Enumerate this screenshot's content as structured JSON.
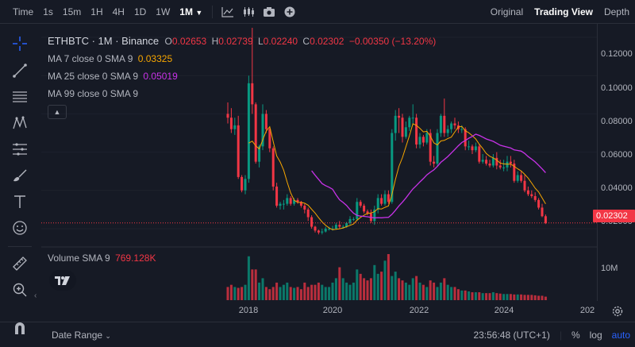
{
  "toolbar": {
    "time_label": "Time",
    "intervals": [
      "1s",
      "15m",
      "1H",
      "4H",
      "1D",
      "1W"
    ],
    "active_interval": "1M",
    "views": [
      "Original",
      "Trading View",
      "Depth"
    ],
    "active_view": "Trading View"
  },
  "legend": {
    "symbol": "ETHBTC · 1M · Binance",
    "open_label": "O",
    "open": "0.02653",
    "high_label": "H",
    "high": "0.02739",
    "low_label": "L",
    "low": "0.02240",
    "close_label": "C",
    "close": "0.02302",
    "change": "−0.00350 (−13.20%)",
    "ma7_label": "MA 7 close 0 SMA 9",
    "ma7_value": "0.03325",
    "ma25_label": "MA 25 close 0 SMA 9",
    "ma25_value": "0.05019",
    "ma99_label": "MA 99 close 0 SMA 9",
    "volume_label": "Volume SMA 9",
    "volume_value": "769.128K"
  },
  "price_axis": {
    "labels": [
      "0.12000",
      "0.10000",
      "0.08000",
      "0.06000",
      "0.04000",
      "0.02000"
    ],
    "current_price": "0.02302",
    "volume_label": "10M"
  },
  "time_axis": {
    "labels": [
      "2018",
      "2020",
      "2022",
      "2024",
      "202"
    ]
  },
  "bottom": {
    "date_range": "Date Range",
    "clock": "23:56:48 (UTC+1)",
    "percent": "%",
    "log": "log",
    "auto": "auto"
  },
  "colors": {
    "up": "#089981",
    "down": "#f23645",
    "ma7": "#f7a600",
    "ma25": "#c832e8",
    "background": "#161a25"
  },
  "chart_data": {
    "type": "candlestick",
    "x": [
      "2017-07",
      "2017-08",
      "2017-09",
      "2017-10",
      "2017-11",
      "2017-12",
      "2018-01",
      "2018-02",
      "2018-03",
      "2018-04",
      "2018-05",
      "2018-06",
      "2018-07",
      "2018-08",
      "2018-09",
      "2018-10",
      "2018-11",
      "2018-12",
      "2019-01",
      "2019-02",
      "2019-03",
      "2019-04",
      "2019-05",
      "2019-06",
      "2019-07",
      "2019-08",
      "2019-09",
      "2019-10",
      "2019-11",
      "2019-12",
      "2020-01",
      "2020-02",
      "2020-03",
      "2020-04",
      "2020-05",
      "2020-06",
      "2020-07",
      "2020-08",
      "2020-09",
      "2020-10",
      "2020-11",
      "2020-12",
      "2021-01",
      "2021-02",
      "2021-03",
      "2021-04",
      "2021-05",
      "2021-06",
      "2021-07",
      "2021-08",
      "2021-09",
      "2021-10",
      "2021-11",
      "2021-12",
      "2022-01",
      "2022-02",
      "2022-03",
      "2022-04",
      "2022-05",
      "2022-06",
      "2022-07",
      "2022-08",
      "2022-09",
      "2022-10",
      "2022-11",
      "2022-12",
      "2023-01",
      "2023-02",
      "2023-03",
      "2023-04",
      "2023-05",
      "2023-06",
      "2023-07",
      "2023-08",
      "2023-09",
      "2023-10",
      "2023-11",
      "2023-12",
      "2024-01",
      "2024-02",
      "2024-03",
      "2024-04",
      "2024-05",
      "2024-06",
      "2024-07",
      "2024-08",
      "2024-09",
      "2024-10",
      "2024-11",
      "2024-12",
      "2025-01",
      "2025-02"
    ],
    "open": [
      0.08,
      0.078,
      0.072,
      0.074,
      0.047,
      0.04,
      0.046,
      0.096,
      0.085,
      0.055,
      0.063,
      0.08,
      0.072,
      0.062,
      0.042,
      0.032,
      0.033,
      0.033,
      0.036,
      0.033,
      0.035,
      0.034,
      0.032,
      0.03,
      0.026,
      0.021,
      0.019,
      0.018,
      0.0185,
      0.02,
      0.02,
      0.02,
      0.022,
      0.021,
      0.021,
      0.023,
      0.025,
      0.025,
      0.034,
      0.032,
      0.029,
      0.028,
      0.024,
      0.03,
      0.036,
      0.033,
      0.038,
      0.034,
      0.07,
      0.079,
      0.078,
      0.068,
      0.073,
      0.078,
      0.078,
      0.064,
      0.068,
      0.065,
      0.07,
      0.055,
      0.054,
      0.07,
      0.079,
      0.07,
      0.072,
      0.075,
      0.074,
      0.072,
      0.072,
      0.063,
      0.063,
      0.061,
      0.063,
      0.055,
      0.056,
      0.054,
      0.053,
      0.057,
      0.053,
      0.052,
      0.052,
      0.055,
      0.054,
      0.045,
      0.048,
      0.045,
      0.04,
      0.038,
      0.037,
      0.035,
      0.031,
      0.0265
    ],
    "close": [
      0.078,
      0.072,
      0.074,
      0.047,
      0.04,
      0.046,
      0.096,
      0.085,
      0.055,
      0.063,
      0.08,
      0.072,
      0.062,
      0.042,
      0.032,
      0.033,
      0.033,
      0.036,
      0.033,
      0.035,
      0.034,
      0.032,
      0.03,
      0.026,
      0.021,
      0.019,
      0.018,
      0.0185,
      0.02,
      0.02,
      0.02,
      0.022,
      0.021,
      0.021,
      0.023,
      0.025,
      0.025,
      0.034,
      0.032,
      0.029,
      0.028,
      0.024,
      0.03,
      0.036,
      0.033,
      0.038,
      0.034,
      0.07,
      0.079,
      0.078,
      0.068,
      0.073,
      0.078,
      0.078,
      0.064,
      0.068,
      0.065,
      0.07,
      0.055,
      0.054,
      0.07,
      0.079,
      0.07,
      0.072,
      0.075,
      0.074,
      0.072,
      0.072,
      0.063,
      0.063,
      0.061,
      0.063,
      0.055,
      0.056,
      0.054,
      0.053,
      0.057,
      0.053,
      0.052,
      0.052,
      0.055,
      0.054,
      0.045,
      0.048,
      0.045,
      0.04,
      0.038,
      0.037,
      0.035,
      0.031,
      0.0265,
      0.023
    ],
    "high": [
      0.086,
      0.083,
      0.078,
      0.079,
      0.048,
      0.048,
      0.1,
      0.125,
      0.086,
      0.064,
      0.085,
      0.082,
      0.073,
      0.063,
      0.044,
      0.034,
      0.035,
      0.038,
      0.037,
      0.036,
      0.036,
      0.0345,
      0.033,
      0.031,
      0.027,
      0.0215,
      0.0195,
      0.02,
      0.021,
      0.021,
      0.0215,
      0.023,
      0.024,
      0.022,
      0.0235,
      0.0265,
      0.026,
      0.036,
      0.035,
      0.033,
      0.03,
      0.03,
      0.032,
      0.038,
      0.038,
      0.04,
      0.04,
      0.072,
      0.082,
      0.083,
      0.08,
      0.076,
      0.079,
      0.085,
      0.08,
      0.07,
      0.069,
      0.072,
      0.072,
      0.058,
      0.072,
      0.08,
      0.088,
      0.074,
      0.076,
      0.078,
      0.076,
      0.074,
      0.073,
      0.066,
      0.064,
      0.065,
      0.064,
      0.059,
      0.058,
      0.056,
      0.059,
      0.06,
      0.056,
      0.056,
      0.058,
      0.058,
      0.056,
      0.05,
      0.05,
      0.048,
      0.042,
      0.04,
      0.039,
      0.036,
      0.033,
      0.0274
    ],
    "low": [
      0.075,
      0.07,
      0.069,
      0.046,
      0.039,
      0.038,
      0.044,
      0.08,
      0.054,
      0.052,
      0.061,
      0.07,
      0.06,
      0.04,
      0.031,
      0.03,
      0.03,
      0.032,
      0.032,
      0.032,
      0.033,
      0.031,
      0.028,
      0.024,
      0.02,
      0.018,
      0.017,
      0.017,
      0.018,
      0.019,
      0.019,
      0.0195,
      0.02,
      0.02,
      0.0205,
      0.022,
      0.024,
      0.024,
      0.031,
      0.028,
      0.027,
      0.023,
      0.022,
      0.028,
      0.032,
      0.032,
      0.033,
      0.033,
      0.066,
      0.07,
      0.065,
      0.067,
      0.071,
      0.074,
      0.062,
      0.062,
      0.063,
      0.064,
      0.053,
      0.052,
      0.053,
      0.068,
      0.068,
      0.068,
      0.07,
      0.072,
      0.07,
      0.07,
      0.061,
      0.061,
      0.059,
      0.06,
      0.054,
      0.054,
      0.053,
      0.052,
      0.052,
      0.051,
      0.051,
      0.05,
      0.05,
      0.052,
      0.044,
      0.044,
      0.044,
      0.039,
      0.037,
      0.036,
      0.034,
      0.03,
      0.026,
      0.0224
    ],
    "volume": [
      0.3,
      0.35,
      0.3,
      0.28,
      0.3,
      0.35,
      1.0,
      0.7,
      0.7,
      0.4,
      0.5,
      0.3,
      0.25,
      0.3,
      0.4,
      0.3,
      0.35,
      0.4,
      0.3,
      0.28,
      0.3,
      0.25,
      0.4,
      0.3,
      0.35,
      0.35,
      0.4,
      0.35,
      0.3,
      0.3,
      0.4,
      0.5,
      0.75,
      0.5,
      0.4,
      0.35,
      0.4,
      0.7,
      0.6,
      0.5,
      0.45,
      0.5,
      0.8,
      0.6,
      0.65,
      0.9,
      1.05,
      0.55,
      0.65,
      0.5,
      0.45,
      0.4,
      0.35,
      0.5,
      0.55,
      0.4,
      0.35,
      0.3,
      0.45,
      0.4,
      0.3,
      0.4,
      0.5,
      0.35,
      0.3,
      0.3,
      0.25,
      0.22,
      0.22,
      0.2,
      0.18,
      0.18,
      0.18,
      0.16,
      0.16,
      0.16,
      0.18,
      0.16,
      0.15,
      0.14,
      0.14,
      0.14,
      0.13,
      0.13,
      0.13,
      0.12,
      0.12,
      0.12,
      0.11,
      0.1,
      0.1,
      0.08
    ],
    "ylim": [
      0.015,
      0.125
    ],
    "price_ticks": [
      0.12,
      0.1,
      0.08,
      0.06,
      0.04,
      0.02
    ]
  }
}
